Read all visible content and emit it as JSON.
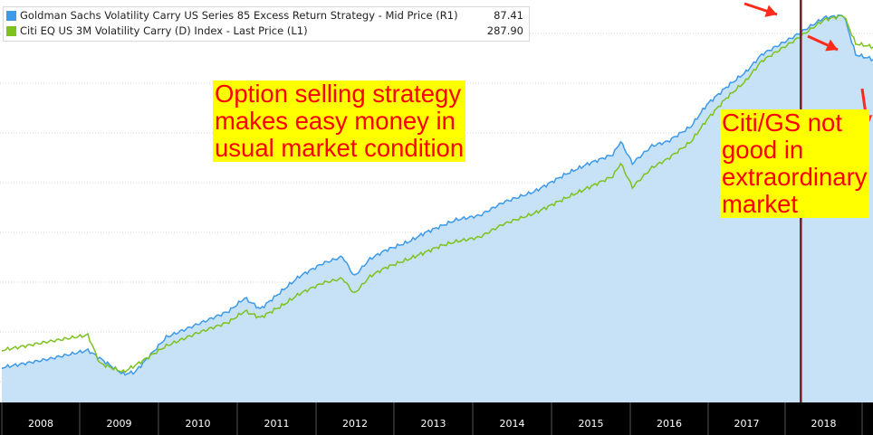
{
  "chart_data": {
    "type": "line",
    "x_tick_labels": [
      "2008",
      "2009",
      "2010",
      "2011",
      "2012",
      "2013",
      "2014",
      "2015",
      "2016",
      "2017",
      "2018"
    ],
    "series": [
      {
        "name": "Goldman Sachs Volatility Carry US Series 85 Excess Return Strategy - Mid Price (R1)",
        "last_value": "87.41",
        "color": "#3d9ae8",
        "area_fill": "#c7e1f7",
        "style": "area",
        "values": [
          [
            2007.2,
            0.16
          ],
          [
            2007.8,
            0.2
          ],
          [
            2008.3,
            0.24
          ],
          [
            2008.75,
            0.13
          ],
          [
            2008.9,
            0.14
          ],
          [
            2009.3,
            0.3
          ],
          [
            2009.7,
            0.36
          ],
          [
            2010.1,
            0.42
          ],
          [
            2010.3,
            0.48
          ],
          [
            2010.5,
            0.43
          ],
          [
            2010.8,
            0.52
          ],
          [
            2011.0,
            0.58
          ],
          [
            2011.3,
            0.64
          ],
          [
            2011.55,
            0.67
          ],
          [
            2011.7,
            0.58
          ],
          [
            2011.9,
            0.66
          ],
          [
            2012.1,
            0.7
          ],
          [
            2012.4,
            0.74
          ],
          [
            2012.6,
            0.78
          ],
          [
            2012.8,
            0.81
          ],
          [
            2013.0,
            0.84
          ],
          [
            2013.3,
            0.86
          ],
          [
            2013.6,
            0.92
          ],
          [
            2014.0,
            0.97
          ],
          [
            2014.4,
            1.05
          ],
          [
            2014.7,
            1.1
          ],
          [
            2015.0,
            1.14
          ],
          [
            2015.1,
            1.2
          ],
          [
            2015.25,
            1.1
          ],
          [
            2015.5,
            1.18
          ],
          [
            2015.7,
            1.2
          ],
          [
            2016.0,
            1.27
          ],
          [
            2016.2,
            1.37
          ],
          [
            2016.45,
            1.45
          ],
          [
            2016.7,
            1.52
          ],
          [
            2016.9,
            1.6
          ],
          [
            2017.3,
            1.68
          ],
          [
            2017.7,
            1.77
          ],
          [
            2017.95,
            1.78
          ],
          [
            2018.1,
            1.6
          ],
          [
            2018.4,
            1.57
          ],
          [
            2018.6,
            1.55
          ],
          [
            2018.75,
            1.49
          ]
        ]
      },
      {
        "name": "Citi EQ US 3M Volatility Carry (D) Index - Last Price (L1)",
        "last_value": "287.90",
        "color": "#7dc21e",
        "style": "line",
        "values": [
          [
            2007.2,
            0.24
          ],
          [
            2007.8,
            0.28
          ],
          [
            2008.3,
            0.31
          ],
          [
            2008.45,
            0.18
          ],
          [
            2008.75,
            0.14
          ],
          [
            2008.9,
            0.17
          ],
          [
            2009.3,
            0.26
          ],
          [
            2009.7,
            0.32
          ],
          [
            2010.1,
            0.37
          ],
          [
            2010.3,
            0.42
          ],
          [
            2010.5,
            0.39
          ],
          [
            2010.8,
            0.45
          ],
          [
            2011.0,
            0.5
          ],
          [
            2011.3,
            0.55
          ],
          [
            2011.55,
            0.57
          ],
          [
            2011.7,
            0.5
          ],
          [
            2011.9,
            0.58
          ],
          [
            2012.1,
            0.62
          ],
          [
            2012.4,
            0.66
          ],
          [
            2012.6,
            0.69
          ],
          [
            2012.8,
            0.72
          ],
          [
            2013.0,
            0.74
          ],
          [
            2013.3,
            0.76
          ],
          [
            2013.6,
            0.82
          ],
          [
            2014.0,
            0.87
          ],
          [
            2014.4,
            0.94
          ],
          [
            2014.7,
            0.99
          ],
          [
            2015.0,
            1.04
          ],
          [
            2015.1,
            1.1
          ],
          [
            2015.25,
            0.99
          ],
          [
            2015.5,
            1.08
          ],
          [
            2015.7,
            1.12
          ],
          [
            2016.0,
            1.2
          ],
          [
            2016.2,
            1.3
          ],
          [
            2016.45,
            1.4
          ],
          [
            2016.7,
            1.48
          ],
          [
            2016.9,
            1.57
          ],
          [
            2017.3,
            1.66
          ],
          [
            2017.7,
            1.76
          ],
          [
            2017.95,
            1.78
          ],
          [
            2018.1,
            1.65
          ],
          [
            2018.4,
            1.63
          ],
          [
            2018.6,
            1.62
          ],
          [
            2018.75,
            1.56
          ]
        ]
      }
    ],
    "legend_position": "top-left",
    "grid": "horizontal",
    "axis_bar_color": "#000000",
    "axis_text_color": "#ffffff",
    "vertical_marker": {
      "x": 2017.4,
      "color": "#7a1b2a"
    },
    "annotations": [
      {
        "text_lines": [
          "Option selling strategy",
          "makes easy money in",
          "usual market condition"
        ],
        "text_color": "#ff0000",
        "background": "#ffff00"
      },
      {
        "text_lines": [
          "Citi/GS not",
          "good in",
          "extraordinary",
          "market"
        ],
        "text_color": "#ff0000",
        "background": "#ffff00"
      }
    ],
    "arrow_color": "#ff2a1a"
  }
}
